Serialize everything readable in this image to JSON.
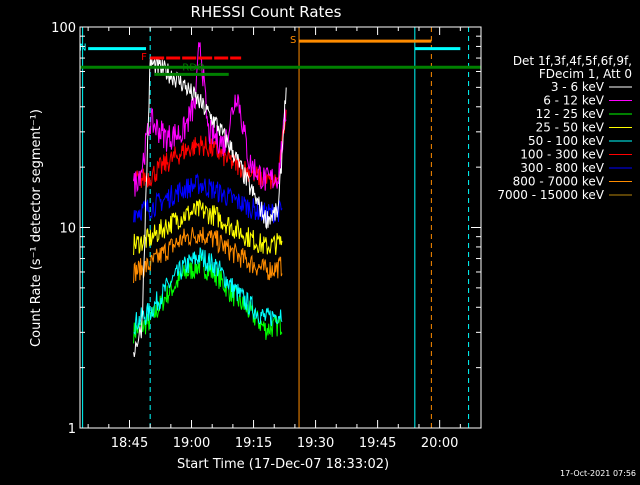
{
  "chart_data": {
    "type": "line",
    "title": "RHESSI Count Rates",
    "xlabel": "Start Time (17-Dec-07 18:33:02)",
    "ylabel": "Count Rate (s⁻¹ detector segment⁻¹)",
    "y_scale": "log",
    "ylim": [
      1,
      100
    ],
    "xlim": [
      "18:33:02",
      "20:10:00"
    ],
    "x_ticks": [
      "18:45",
      "19:00",
      "19:15",
      "19:30",
      "19:45",
      "20:00"
    ],
    "y_ticks": [
      "1",
      "10",
      "100"
    ],
    "grid": false,
    "legend_position": "right",
    "legend_header": [
      "Det 1f,3f,4f,5f,6f,9f,",
      "FDecim 1, Att 0"
    ],
    "series": [
      {
        "name": "3 - 6 keV",
        "color": "#ffffff",
        "x": [
          "18:46",
          "18:48",
          "18:50",
          "18:54",
          "18:58",
          "19:02",
          "19:06",
          "19:10",
          "19:14",
          "19:18",
          "19:21",
          "19:23"
        ],
        "values": [
          2.4,
          3.2,
          66,
          60,
          52,
          42,
          33,
          24,
          16,
          11,
          12,
          55
        ]
      },
      {
        "name": "6 - 12 keV",
        "color": "#ff00ff",
        "x": [
          "18:46",
          "18:48",
          "18:50",
          "18:54",
          "18:58",
          "19:01",
          "19:02",
          "19:04",
          "19:08",
          "19:11",
          "19:14",
          "19:18",
          "19:21",
          "19:23"
        ],
        "values": [
          16,
          20,
          34,
          28,
          30,
          42,
          90,
          30,
          26,
          48,
          21,
          17,
          18,
          40
        ]
      },
      {
        "name": "12 - 25 keV",
        "color": "#00ff00",
        "x": [
          "18:46",
          "18:50",
          "18:54",
          "18:58",
          "19:02",
          "19:06",
          "19:10",
          "19:14",
          "19:18",
          "19:22"
        ],
        "values": [
          3.0,
          3.4,
          4.6,
          5.8,
          6.5,
          5.8,
          4.6,
          3.8,
          3.1,
          3.3
        ]
      },
      {
        "name": "25 - 50 keV",
        "color": "#ffff00",
        "x": [
          "18:46",
          "18:50",
          "18:54",
          "18:58",
          "19:02",
          "19:06",
          "19:10",
          "19:14",
          "19:18",
          "19:22"
        ],
        "values": [
          8.2,
          8.8,
          10.2,
          11.5,
          12.2,
          11.4,
          10.0,
          8.9,
          8.0,
          8.5
        ]
      },
      {
        "name": "50 - 100 keV",
        "color": "#00ffff",
        "x": [
          "18:46",
          "18:50",
          "18:54",
          "18:58",
          "19:02",
          "19:06",
          "19:10",
          "19:14",
          "19:18",
          "19:22"
        ],
        "values": [
          3.3,
          3.8,
          5.0,
          6.3,
          7.2,
          6.4,
          5.0,
          4.1,
          3.5,
          3.8
        ]
      },
      {
        "name": "100 - 300 keV",
        "color": "#ff0000",
        "x": [
          "18:46",
          "18:50",
          "18:54",
          "18:58",
          "19:02",
          "19:06",
          "19:10",
          "19:14",
          "19:18",
          "19:21",
          "19:23"
        ],
        "values": [
          17,
          18,
          21,
          24,
          26,
          24,
          21,
          19,
          17,
          17,
          42
        ]
      },
      {
        "name": "300 - 800 keV",
        "color": "#0000ff",
        "x": [
          "18:46",
          "18:50",
          "18:54",
          "18:58",
          "19:02",
          "19:06",
          "19:10",
          "19:14",
          "19:18",
          "19:22"
        ],
        "values": [
          12,
          12.5,
          14,
          15.5,
          16.5,
          15.2,
          13.8,
          12.6,
          11.7,
          12.2
        ]
      },
      {
        "name": "800 - 7000 keV",
        "color": "#ff8c00",
        "x": [
          "18:46",
          "18:50",
          "18:54",
          "18:58",
          "19:02",
          "19:06",
          "19:10",
          "19:14",
          "19:18",
          "19:22"
        ],
        "values": [
          6.0,
          6.5,
          7.7,
          8.8,
          9.4,
          8.6,
          7.5,
          6.7,
          6.1,
          6.4
        ]
      },
      {
        "name": "7000 - 15000 keV",
        "color": "#b8860b",
        "x": [],
        "values": []
      }
    ],
    "markers": [
      {
        "label": "S",
        "color": "#ff8c00",
        "x_start": "19:26",
        "x_end": "19:58",
        "value": 85
      },
      {
        "label": "N",
        "color": "#00ffff",
        "x_start": "18:35",
        "x_end": "18:49",
        "value": 78
      },
      {
        "label": "",
        "color": "#00ffff",
        "x_start": "19:54",
        "x_end": "20:05",
        "value": 78
      },
      {
        "label": "F",
        "color": "#ff0000",
        "x_start": "18:50",
        "x_end": "19:12",
        "value": 70
      },
      {
        "label": "RDO",
        "color": "#008000",
        "x_start": "18:51",
        "x_end": "19:09",
        "value": 58
      },
      {
        "label": "",
        "color": "#008000",
        "x_start": "18:33",
        "x_end": "20:10",
        "value": 63
      }
    ],
    "vertical_lines": [
      {
        "x": "18:33:40",
        "color": "#00ffff",
        "style": "solid"
      },
      {
        "x": "18:50",
        "color": "#00ffff",
        "style": "dashed"
      },
      {
        "x": "19:26",
        "color": "#ff8c00",
        "style": "solid"
      },
      {
        "x": "19:54",
        "color": "#00ffff",
        "style": "solid"
      },
      {
        "x": "19:58",
        "color": "#ff8c00",
        "style": "dashed"
      },
      {
        "x": "20:07",
        "color": "#00ffff",
        "style": "dashed"
      }
    ]
  },
  "footer_timestamp": "17-Oct-2021 07:56"
}
